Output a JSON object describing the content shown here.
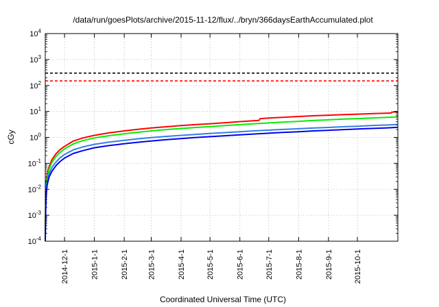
{
  "chart_data": {
    "type": "line",
    "title": "/data/run/goesPlots/archive/2015-11-12/flux/../bryn/366daysEarthAccumulated.plot",
    "xlabel": "Coordinated Universal Time (UTC)",
    "ylabel": "cGy",
    "yscale": "log",
    "xlim": [
      "2014-11-11",
      "2015-11-12"
    ],
    "ylim": [
      0.0001,
      10000
    ],
    "y_ticks": [
      {
        "value": 0.0001,
        "base": "10",
        "exp": "-4"
      },
      {
        "value": 0.001,
        "base": "10",
        "exp": "-3"
      },
      {
        "value": 0.01,
        "base": "10",
        "exp": "-2"
      },
      {
        "value": 0.1,
        "base": "10",
        "exp": "-1"
      },
      {
        "value": 1,
        "base": "10",
        "exp": "0"
      },
      {
        "value": 10,
        "base": "10",
        "exp": "1"
      },
      {
        "value": 100,
        "base": "10",
        "exp": "2"
      },
      {
        "value": 1000,
        "base": "10",
        "exp": "3"
      },
      {
        "value": 10000,
        "base": "10",
        "exp": "4"
      }
    ],
    "x_ticks": [
      "2014-12-1",
      "2015-1-1",
      "2015-2-1",
      "2015-3-1",
      "2015-4-1",
      "2015-5-1",
      "2015-6-1",
      "2015-7-1",
      "2015-8-1",
      "2015-9-1",
      "2015-10-1"
    ],
    "grid": true,
    "legend": "none",
    "reference_lines": [
      {
        "y": 300,
        "color": "#000000",
        "style": "dashed"
      },
      {
        "y": 150,
        "color": "#ff0000",
        "style": "dashed"
      }
    ],
    "series": [
      {
        "color": "#ff0000",
        "x": [
          "2014-11-11",
          "2014-11-11T12:00",
          "2014-11-12",
          "2014-11-13",
          "2014-11-15",
          "2014-11-18",
          "2014-11-22",
          "2014-11-26",
          "2014-12-1",
          "2014-12-10",
          "2014-12-20",
          "2015-1-1",
          "2015-1-15",
          "2015-2-1",
          "2015-2-15",
          "2015-3-1",
          "2015-3-15",
          "2015-4-1",
          "2015-4-15",
          "2015-5-1",
          "2015-5-15",
          "2015-6-1",
          "2015-6-15",
          "2015-6-21",
          "2015-6-22",
          "2015-7-1",
          "2015-7-15",
          "2015-8-1",
          "2015-8-15",
          "2015-9-1",
          "2015-9-15",
          "2015-10-1",
          "2015-10-15",
          "2015-11-1",
          "2015-11-5",
          "2015-11-6",
          "2015-11-12"
        ],
        "values": [
          0.0003,
          0.005,
          0.02,
          0.04,
          0.075,
          0.14,
          0.23,
          0.33,
          0.45,
          0.72,
          0.95,
          1.2,
          1.48,
          1.78,
          2.05,
          2.3,
          2.55,
          2.85,
          3.1,
          3.35,
          3.65,
          4.05,
          4.35,
          4.55,
          5.3,
          5.55,
          5.95,
          6.4,
          6.8,
          7.15,
          7.5,
          7.85,
          8.2,
          8.6,
          8.7,
          9.4,
          9.7
        ]
      },
      {
        "color": "#00ee00",
        "x": [
          "2014-11-11",
          "2014-11-11T12:00",
          "2014-11-12",
          "2014-11-13",
          "2014-11-15",
          "2014-11-18",
          "2014-11-22",
          "2014-11-26",
          "2014-12-1",
          "2014-12-10",
          "2014-12-20",
          "2015-1-1",
          "2015-1-15",
          "2015-2-1",
          "2015-2-15",
          "2015-3-1",
          "2015-3-15",
          "2015-4-1",
          "2015-4-15",
          "2015-5-1",
          "2015-5-15",
          "2015-6-1",
          "2015-6-15",
          "2015-7-1",
          "2015-7-15",
          "2015-8-1",
          "2015-8-15",
          "2015-9-1",
          "2015-9-15",
          "2015-10-1",
          "2015-10-15",
          "2015-11-1",
          "2015-11-12"
        ],
        "values": [
          0.00025,
          0.004,
          0.015,
          0.03,
          0.06,
          0.11,
          0.18,
          0.26,
          0.36,
          0.56,
          0.75,
          0.95,
          1.15,
          1.38,
          1.58,
          1.78,
          1.98,
          2.2,
          2.4,
          2.6,
          2.82,
          3.1,
          3.35,
          3.6,
          3.85,
          4.15,
          4.45,
          4.75,
          5.05,
          5.3,
          5.6,
          5.9,
          6.2
        ]
      },
      {
        "color": "#2f7fe0",
        "x": [
          "2014-11-11",
          "2014-11-11T12:00",
          "2014-11-12",
          "2014-11-13",
          "2014-11-15",
          "2014-11-18",
          "2014-11-22",
          "2014-11-26",
          "2014-12-1",
          "2014-12-10",
          "2014-12-20",
          "2015-1-1",
          "2015-1-15",
          "2015-2-1",
          "2015-2-15",
          "2015-3-1",
          "2015-3-15",
          "2015-4-1",
          "2015-4-15",
          "2015-5-1",
          "2015-5-15",
          "2015-6-1",
          "2015-6-15",
          "2015-7-1",
          "2015-7-15",
          "2015-8-1",
          "2015-8-15",
          "2015-9-1",
          "2015-9-15",
          "2015-10-1",
          "2015-10-15",
          "2015-11-1",
          "2015-11-12"
        ],
        "values": [
          0.0002,
          0.003,
          0.01,
          0.02,
          0.04,
          0.07,
          0.11,
          0.16,
          0.22,
          0.33,
          0.43,
          0.54,
          0.65,
          0.77,
          0.88,
          0.98,
          1.08,
          1.2,
          1.3,
          1.42,
          1.52,
          1.65,
          1.78,
          1.9,
          2.02,
          2.15,
          2.28,
          2.42,
          2.56,
          2.7,
          2.85,
          3.0,
          3.15
        ]
      },
      {
        "color": "#0000ee",
        "x": [
          "2014-11-11",
          "2014-11-11T12:00",
          "2014-11-12",
          "2014-11-13",
          "2014-11-15",
          "2014-11-18",
          "2014-11-22",
          "2014-11-26",
          "2014-12-1",
          "2014-12-10",
          "2014-12-20",
          "2015-1-1",
          "2015-1-15",
          "2015-2-1",
          "2015-2-15",
          "2015-3-1",
          "2015-3-15",
          "2015-4-1",
          "2015-4-15",
          "2015-5-1",
          "2015-5-15",
          "2015-6-1",
          "2015-6-15",
          "2015-7-1",
          "2015-7-15",
          "2015-8-1",
          "2015-8-15",
          "2015-9-1",
          "2015-9-15",
          "2015-10-1",
          "2015-10-15",
          "2015-11-1",
          "2015-11-12"
        ],
        "values": [
          0.0001,
          0.002,
          0.007,
          0.015,
          0.03,
          0.05,
          0.08,
          0.115,
          0.16,
          0.24,
          0.31,
          0.4,
          0.48,
          0.57,
          0.65,
          0.73,
          0.81,
          0.9,
          0.98,
          1.07,
          1.15,
          1.25,
          1.35,
          1.45,
          1.55,
          1.66,
          1.77,
          1.88,
          1.99,
          2.1,
          2.21,
          2.33,
          2.45
        ]
      }
    ]
  }
}
